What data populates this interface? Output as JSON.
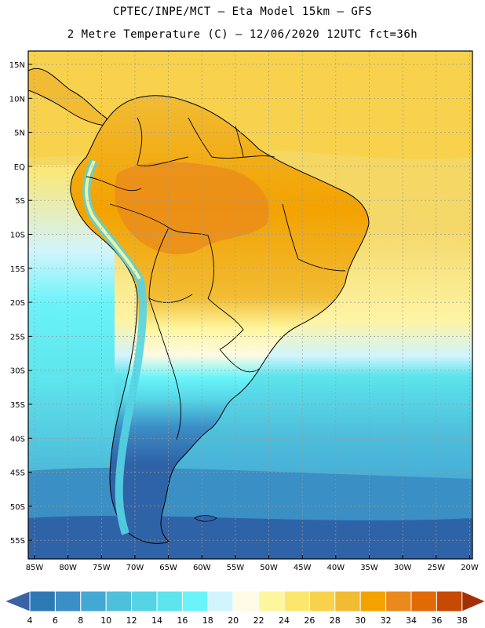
{
  "header": {
    "line1": "CPTEC/INPE/MCT –  Eta Model 15km – GFS",
    "line2": "2 Metre Temperature (C) – 12/06/2020 12UTC fct=36h"
  },
  "map": {
    "lat_labels": [
      "15N",
      "10N",
      "5N",
      "EQ",
      "5S",
      "10S",
      "15S",
      "20S",
      "25S",
      "30S",
      "35S",
      "40S",
      "45S",
      "50S",
      "55S"
    ],
    "lon_labels": [
      "85W",
      "80W",
      "75W",
      "70W",
      "65W",
      "60W",
      "55W",
      "50W",
      "45W",
      "40W",
      "35W",
      "30W",
      "25W",
      "20W"
    ],
    "colors": {
      "ocean_tropical": "#f7d55a",
      "ocean_mid": "#fef4a4",
      "ocean_cool": "#4fd0e0",
      "ocean_cold": "#3a8fc4",
      "land_hot": "#f4a21e",
      "land_cold": "#2f63a8",
      "border": "#000000",
      "grid": "#9a9a9a"
    }
  },
  "colorbar": {
    "labels": [
      "4",
      "6",
      "8",
      "10",
      "12",
      "14",
      "16",
      "18",
      "20",
      "22",
      "24",
      "26",
      "28",
      "30",
      "32",
      "34",
      "36",
      "38"
    ],
    "colors": [
      "#3a62a5",
      "#2d79b6",
      "#3b8fc6",
      "#44a8d4",
      "#4fc0dc",
      "#55d4e4",
      "#5de4ec",
      "#6af4fa",
      "#d2f4fc",
      "#fefae4",
      "#fef69e",
      "#fde66e",
      "#f8d24c",
      "#f1bc34",
      "#f3a200",
      "#ea8a1c",
      "#e26a04",
      "#c64a04",
      "#a42e06"
    ]
  }
}
